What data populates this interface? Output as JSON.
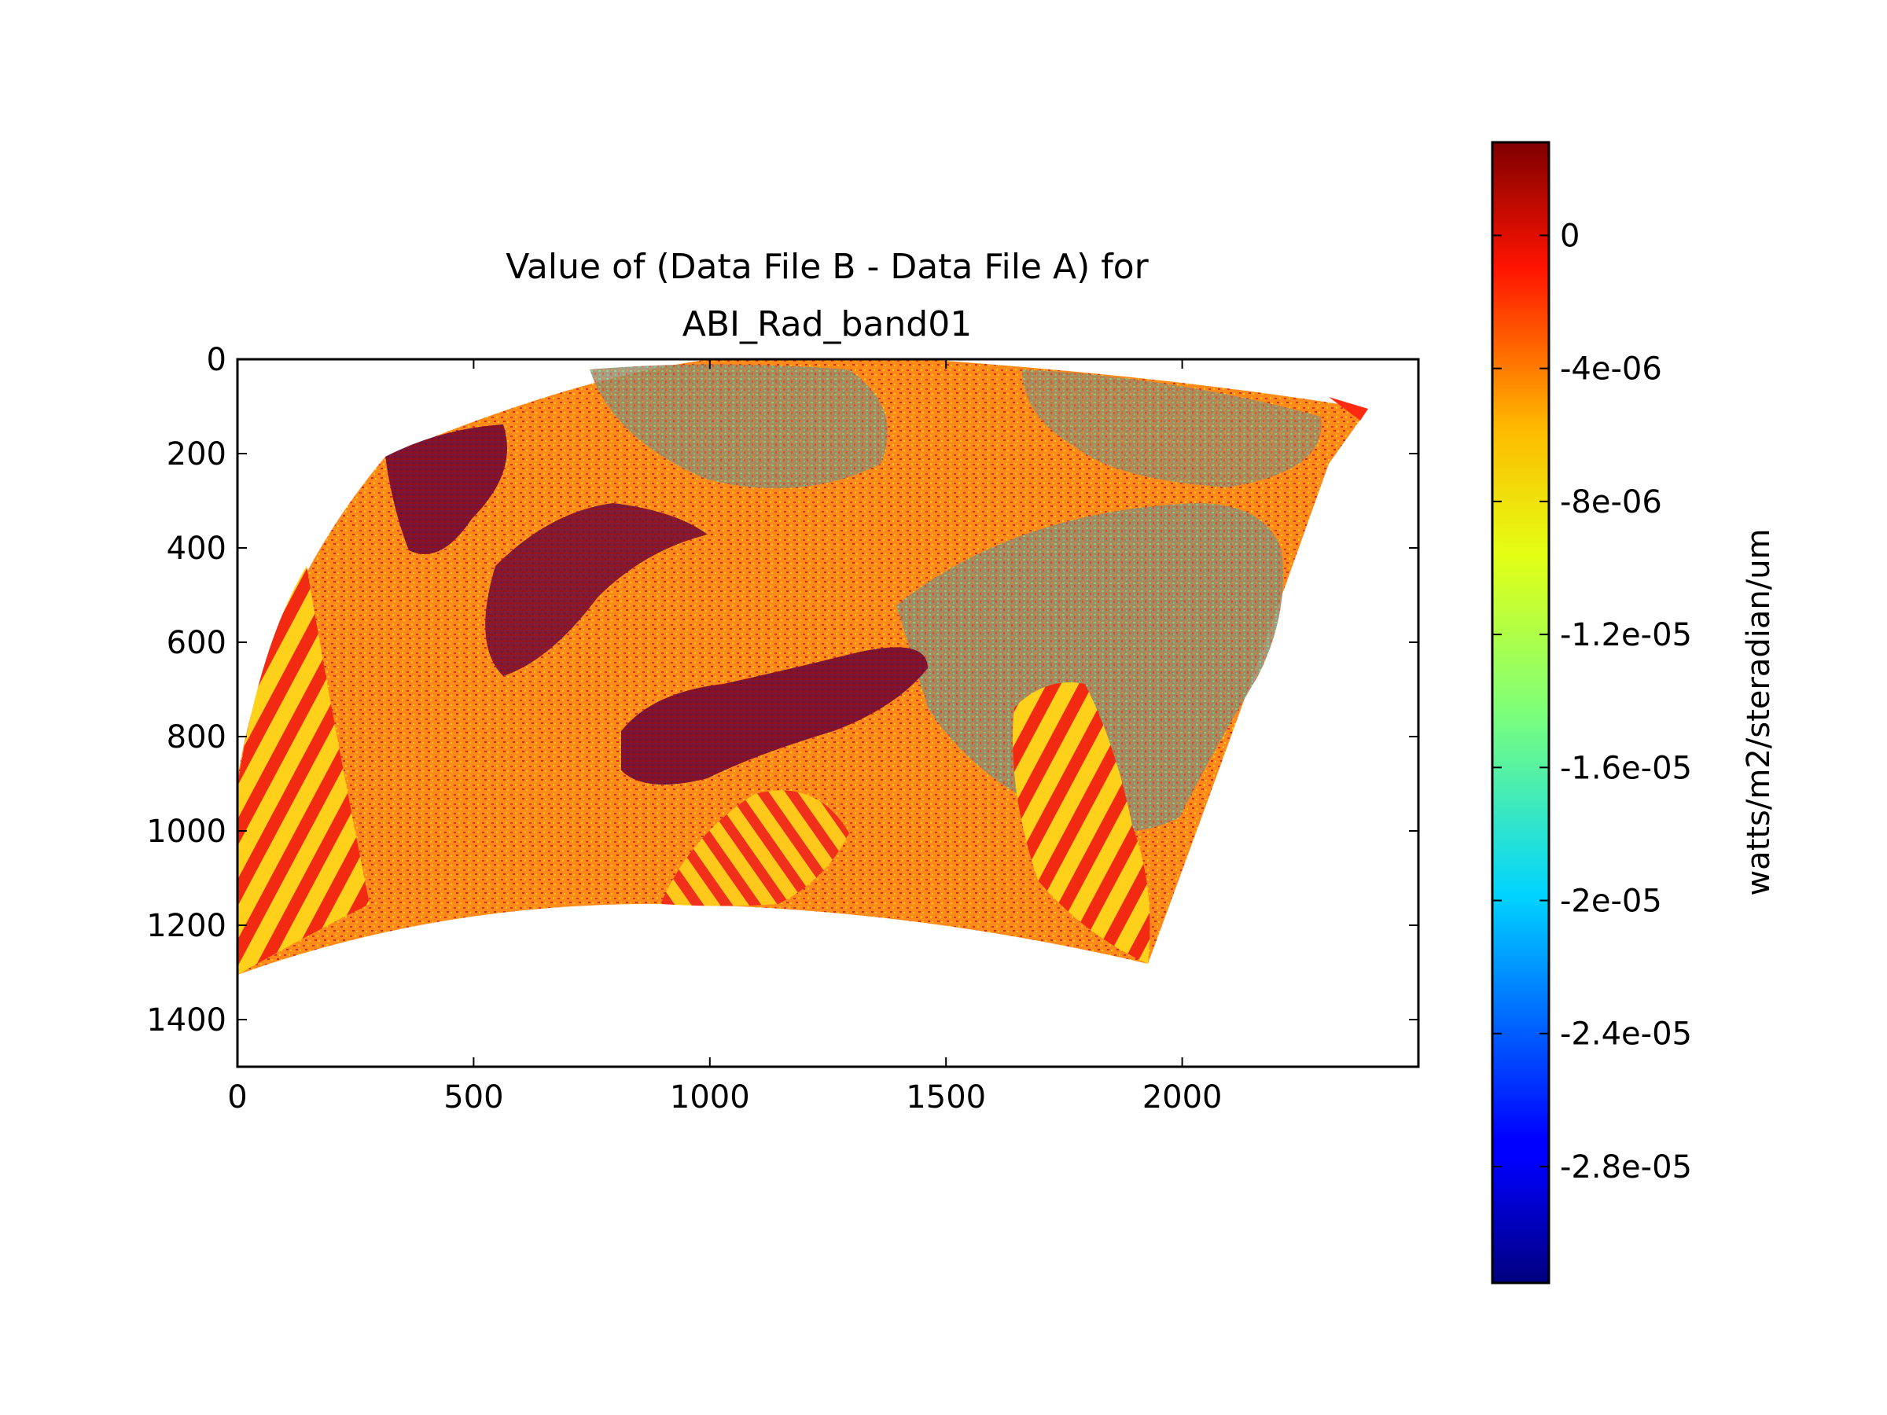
{
  "chart_data": {
    "type": "heatmap",
    "title_lines": [
      "Value of (Data File B - Data File A) for",
      "ABI_Rad_band01"
    ],
    "xlabel": "",
    "ylabel": "",
    "x_ticks": [
      0,
      500,
      1000,
      1500,
      2000
    ],
    "y_ticks": [
      0,
      200,
      400,
      600,
      800,
      1000,
      1200,
      1400
    ],
    "xlim": [
      0,
      2500
    ],
    "ylim": [
      1500,
      0
    ],
    "y_inverted": true,
    "grid": false,
    "colormap": "jet",
    "colorbar": {
      "label": "watts/m2/steradian/um",
      "ticks": [
        "0",
        "-4e-06",
        "-8e-06",
        "-1.2e-05",
        "-1.6e-05",
        "-2e-05",
        "-2.4e-05",
        "-2.8e-05"
      ],
      "range": [
        -3.15e-05,
        2.8e-06
      ]
    },
    "data_region_corners": {
      "top_left": [
        310,
        210
      ],
      "top_edge_peak": [
        1150,
        0
      ],
      "top_right": [
        2390,
        100
      ],
      "bottom_right": [
        1930,
        1290
      ],
      "bottom_center": [
        900,
        1150
      ],
      "bottom_left": [
        0,
        1310
      ]
    },
    "dominant_values": {
      "background": -5e-06,
      "stripes": [
        0,
        -8e-06
      ],
      "dark_patches": [
        2e-06,
        -3e-05
      ],
      "speckle": -1.3e-05
    }
  }
}
